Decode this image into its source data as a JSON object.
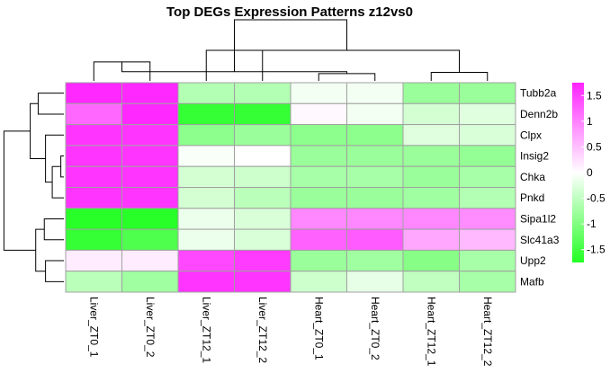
{
  "chart_data": {
    "type": "heatmap",
    "title": "Top DEGs Expression Patterns z12vs0",
    "columns": [
      "Liver_ZT0_1",
      "Liver_ZT0_2",
      "Liver_ZT12_1",
      "Liver_ZT12_2",
      "Heart_ZT0_1",
      "Heart_ZT0_2",
      "Heart_ZT12_1",
      "Heart_ZT12_2"
    ],
    "rows": [
      "Tubb2a",
      "Denn2b",
      "Clpx",
      "Insig2",
      "Chka",
      "Pnkd",
      "Sipa1l2",
      "Slc41a3",
      "Upp2",
      "Mafb"
    ],
    "values": [
      [
        1.7,
        1.7,
        -0.6,
        -0.6,
        -0.1,
        -0.1,
        -0.8,
        -0.8
      ],
      [
        1.2,
        1.7,
        -1.6,
        -1.6,
        0.05,
        -0.1,
        -0.35,
        -0.25
      ],
      [
        1.6,
        1.6,
        -0.9,
        -0.8,
        -0.9,
        -0.9,
        -0.25,
        -0.3
      ],
      [
        1.6,
        1.6,
        -0.05,
        0.0,
        -0.8,
        -0.8,
        -0.8,
        -0.85
      ],
      [
        1.6,
        1.6,
        -0.35,
        -0.4,
        -0.7,
        -0.7,
        -0.8,
        -0.7
      ],
      [
        1.6,
        1.6,
        -0.35,
        -0.55,
        -0.8,
        -0.8,
        -0.75,
        -0.6
      ],
      [
        -1.7,
        -1.7,
        -0.15,
        -0.3,
        0.95,
        0.95,
        0.95,
        0.9
      ],
      [
        -1.6,
        -1.4,
        -0.15,
        -0.3,
        1.25,
        1.3,
        0.7,
        0.55
      ],
      [
        0.15,
        0.15,
        1.45,
        1.55,
        -0.8,
        -0.75,
        -0.95,
        -0.7
      ],
      [
        -0.55,
        -0.75,
        1.6,
        1.6,
        -0.4,
        -0.2,
        -0.5,
        -0.7
      ]
    ],
    "color_scale": {
      "low": "#22ff22",
      "mid": "#ffffff",
      "high": "#ff22ff",
      "min": -1.75,
      "max": 1.75
    },
    "legend_ticks": [
      "1.5",
      "1",
      "0.5",
      "0",
      "-0.5",
      "-1",
      "-1.5"
    ],
    "legend_tick_values": [
      1.5,
      1,
      0.5,
      0,
      -0.5,
      -1,
      -1.5
    ],
    "grid": true,
    "cell_border_color": "#a0a0a0",
    "column_dendrogram": {
      "merges": [
        [
          0,
          1,
          0.31
        ],
        [
          4,
          5,
          0.12
        ],
        [
          6,
          7,
          0.14
        ],
        [
          8,
          9,
          0.15
        ],
        [
          2,
          3,
          0.5
        ],
        [
          10,
          11,
          0.5
        ],
        [
          12,
          13,
          1.0
        ]
      ]
    },
    "row_dendrogram": {
      "merges": [
        [
          3,
          4,
          0.05
        ],
        [
          10,
          5,
          0.19
        ],
        [
          2,
          11,
          0.3
        ],
        [
          0,
          1,
          0.42
        ],
        [
          13,
          12,
          0.55
        ],
        [
          6,
          7,
          0.32
        ],
        [
          8,
          9,
          0.3
        ],
        [
          15,
          16,
          0.46
        ],
        [
          14,
          17,
          0.98
        ]
      ]
    }
  }
}
